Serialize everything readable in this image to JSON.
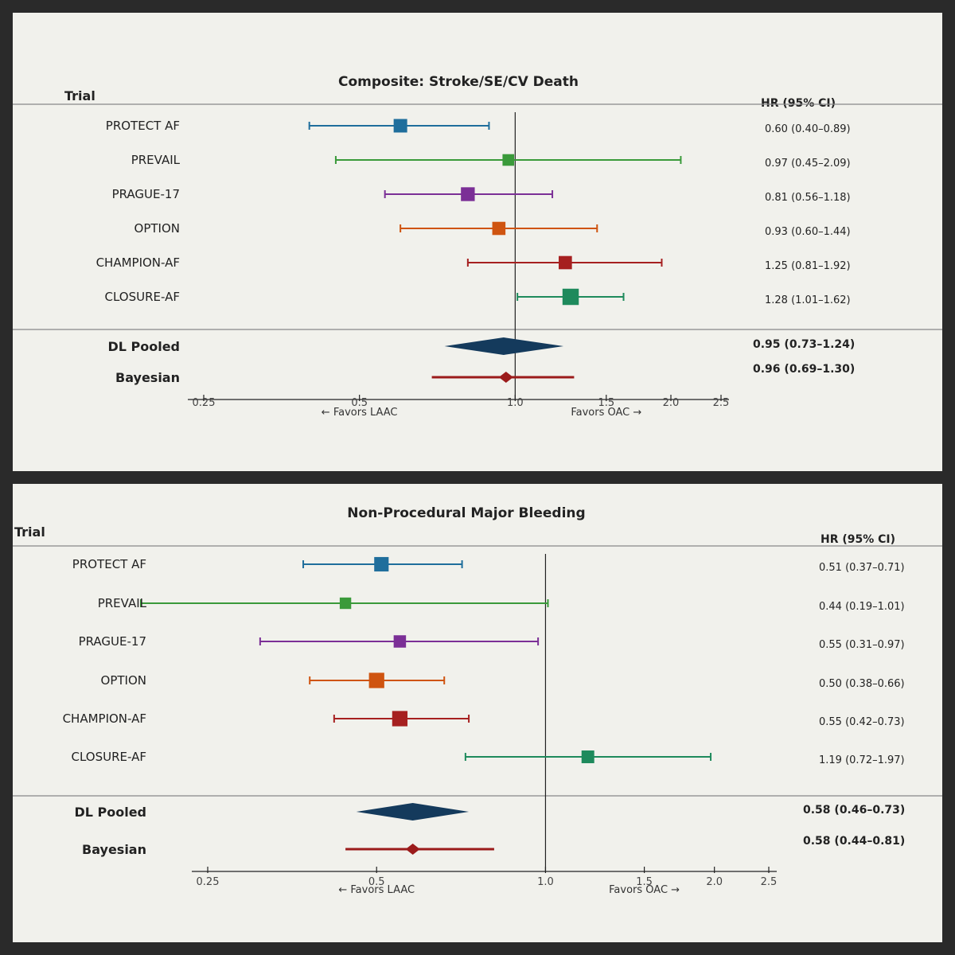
{
  "colors": {
    "protect": "#1f6e9c",
    "prevail": "#3a9a3a",
    "prague": "#7b2f96",
    "option": "#cf5410",
    "champion": "#a62020",
    "closure": "#1e8a5c",
    "pooled": "#143a5c",
    "bayesian": "#9b1b1b"
  },
  "chart_data": [
    {
      "type": "forest",
      "title": "Composite: Stroke/SE/CV Death",
      "trial_header": "Trial",
      "hr_header": "HR (95% CI)",
      "x_scale": "log",
      "xlim": [
        0.25,
        2.5
      ],
      "ticks": [
        "0.25",
        "0.5",
        "1.0",
        "1.5",
        "2.0",
        "2.5"
      ],
      "favors_left": "← Favors LAAC",
      "favors_right": "Favors OAC →",
      "reference_line": 1.0,
      "trials": [
        {
          "name": "PROTECT AF",
          "hr": 0.6,
          "lo": 0.4,
          "hi": 0.89,
          "label": "0.60 (0.40–0.89)",
          "color_key": "protect"
        },
        {
          "name": "PREVAIL",
          "hr": 0.97,
          "lo": 0.45,
          "hi": 2.09,
          "label": "0.97 (0.45–2.09)",
          "color_key": "prevail"
        },
        {
          "name": "PRAGUE-17",
          "hr": 0.81,
          "lo": 0.56,
          "hi": 1.18,
          "label": "0.81 (0.56–1.18)",
          "color_key": "prague"
        },
        {
          "name": "OPTION",
          "hr": 0.93,
          "lo": 0.6,
          "hi": 1.44,
          "label": "0.93 (0.60–1.44)",
          "color_key": "option"
        },
        {
          "name": "CHAMPION-AF",
          "hr": 1.25,
          "lo": 0.81,
          "hi": 1.92,
          "label": "1.25 (0.81–1.92)",
          "color_key": "champion"
        },
        {
          "name": "CLOSURE-AF",
          "hr": 1.28,
          "lo": 1.01,
          "hi": 1.62,
          "label": "1.28 (1.01–1.62)",
          "color_key": "closure"
        }
      ],
      "pooled": {
        "name": "DL Pooled",
        "hr": 0.95,
        "lo": 0.73,
        "hi": 1.24,
        "label": "0.95 (0.73–1.24)"
      },
      "bayesian": {
        "name": "Bayesian",
        "hr": 0.96,
        "lo": 0.69,
        "hi": 1.3,
        "label": "0.96 (0.69–1.30)"
      }
    },
    {
      "type": "forest",
      "title": "Non-Procedural Major Bleeding",
      "trial_header": "Trial",
      "hr_header": "HR (95% CI)",
      "x_scale": "log",
      "xlim": [
        0.25,
        2.5
      ],
      "ticks": [
        "0.25",
        "0.5",
        "1.0",
        "1.5",
        "2.0",
        "2.5"
      ],
      "favors_left": "← Favors LAAC",
      "favors_right": "Favors OAC →",
      "reference_line": 1.0,
      "trials": [
        {
          "name": "PROTECT AF",
          "hr": 0.51,
          "lo": 0.37,
          "hi": 0.71,
          "label": "0.51 (0.37–0.71)",
          "color_key": "protect"
        },
        {
          "name": "PREVAIL",
          "hr": 0.44,
          "lo": 0.19,
          "hi": 1.01,
          "label": "0.44 (0.19–1.01)",
          "color_key": "prevail"
        },
        {
          "name": "PRAGUE-17",
          "hr": 0.55,
          "lo": 0.31,
          "hi": 0.97,
          "label": "0.55 (0.31–0.97)",
          "color_key": "prague"
        },
        {
          "name": "OPTION",
          "hr": 0.5,
          "lo": 0.38,
          "hi": 0.66,
          "label": "0.50 (0.38–0.66)",
          "color_key": "option"
        },
        {
          "name": "CHAMPION-AF",
          "hr": 0.55,
          "lo": 0.42,
          "hi": 0.73,
          "label": "0.55 (0.42–0.73)",
          "color_key": "champion"
        },
        {
          "name": "CLOSURE-AF",
          "hr": 1.19,
          "lo": 0.72,
          "hi": 1.97,
          "label": "1.19 (0.72–1.97)",
          "color_key": "closure"
        }
      ],
      "pooled": {
        "name": "DL Pooled",
        "hr": 0.58,
        "lo": 0.46,
        "hi": 0.73,
        "label": "0.58 (0.46–0.73)"
      },
      "bayesian": {
        "name": "Bayesian",
        "hr": 0.58,
        "lo": 0.44,
        "hi": 0.81,
        "label": "0.58 (0.44–0.81)"
      }
    }
  ]
}
